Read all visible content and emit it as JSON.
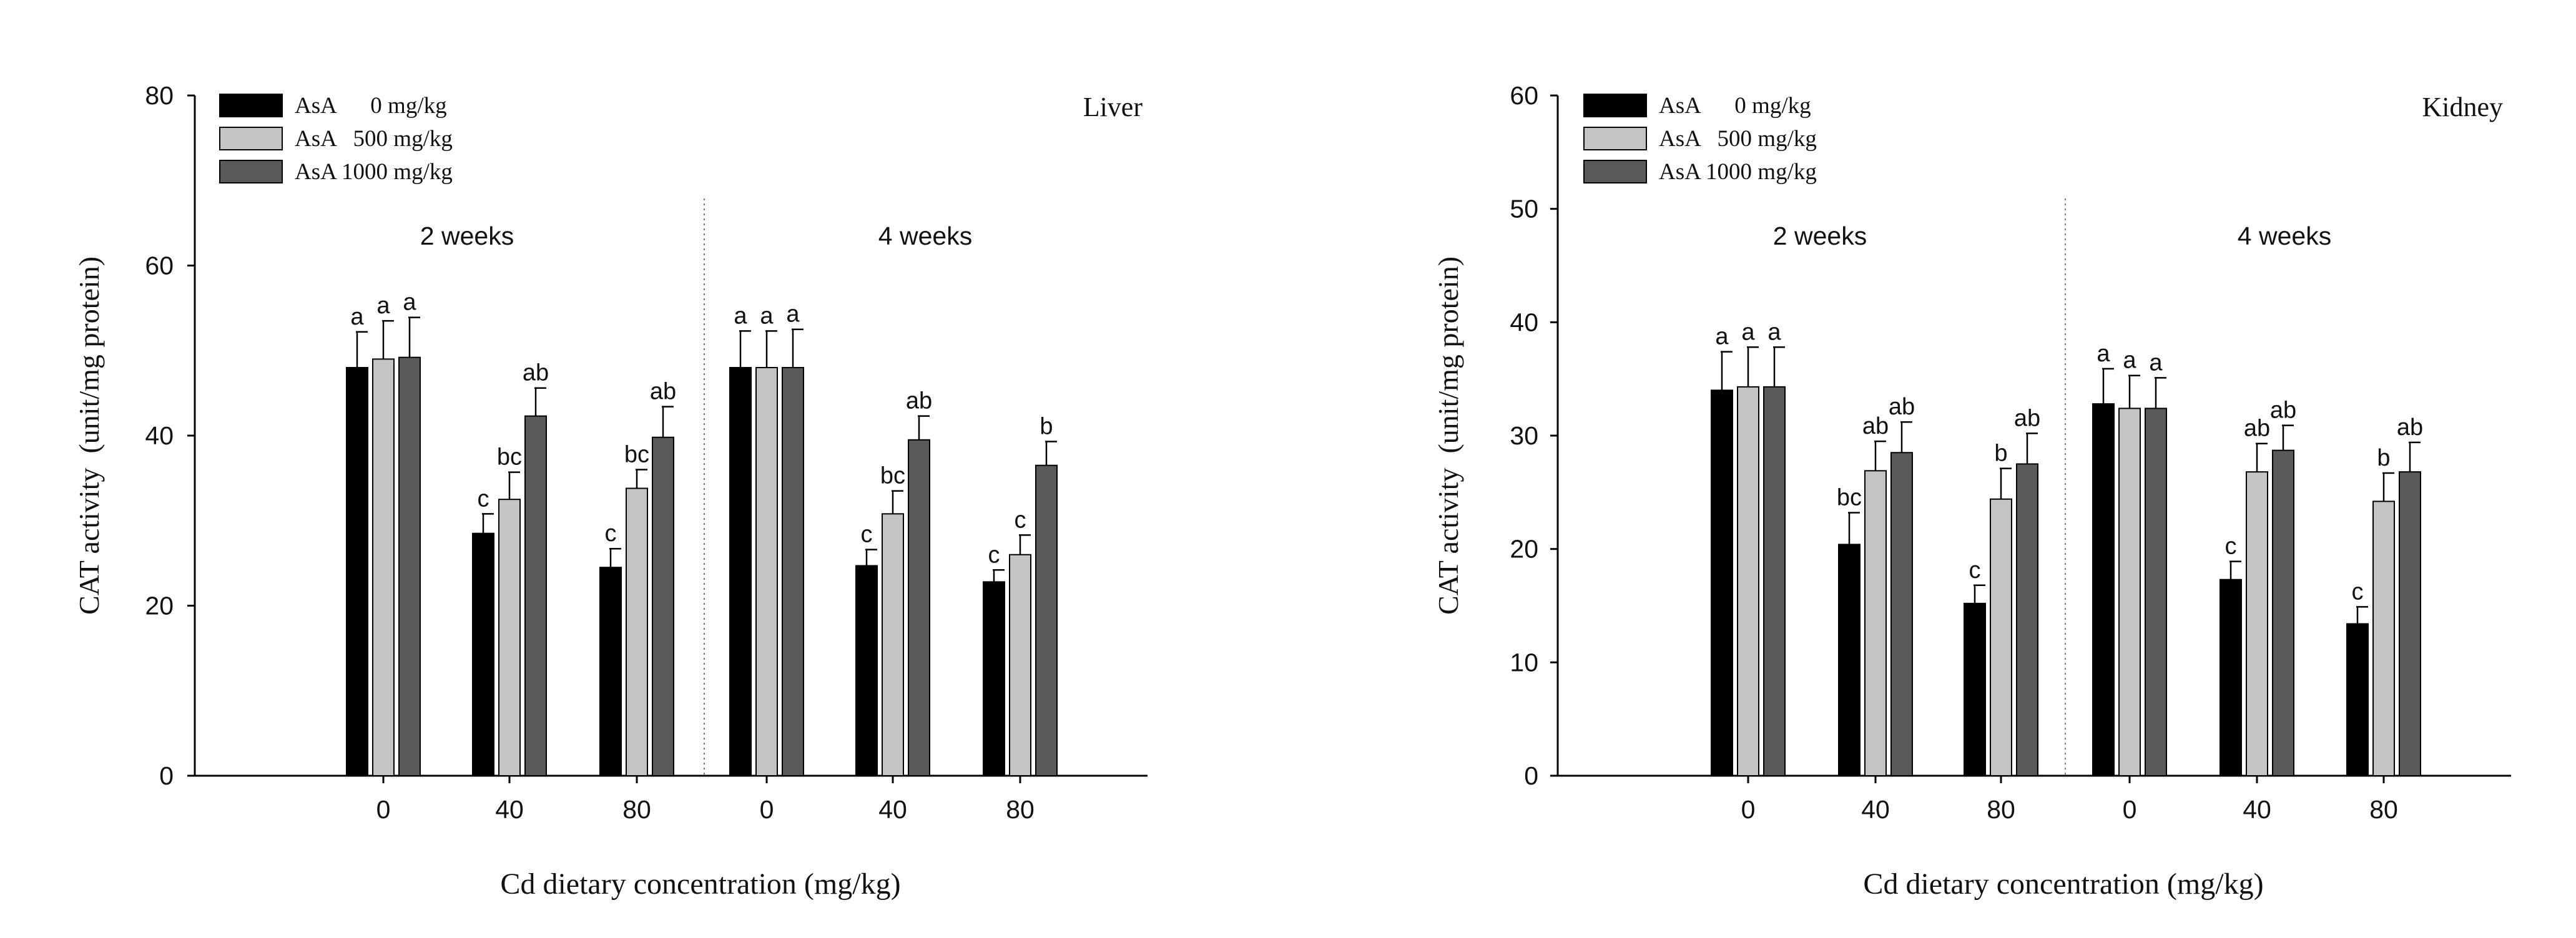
{
  "chart_data": [
    {
      "type": "bar",
      "panel_label": "Liver",
      "ylabel": "CAT activity  (unit/mg protein)",
      "xlabel": "Cd dietary concentration (mg/kg)",
      "ylim": [
        0,
        80
      ],
      "yticks": [
        "0",
        "20",
        "40",
        "60",
        "80"
      ],
      "periods": [
        {
          "label": "2 weeks",
          "categories": [
            "0",
            "40",
            "80"
          ],
          "series": [
            {
              "name": "AsA      0 mg/kg",
              "values": [
                48,
                28.5,
                24.5
              ],
              "errors": [
                4.2,
                2.3,
                2.2
              ],
              "letters": [
                "a",
                "c",
                "c"
              ]
            },
            {
              "name": "AsA   500 mg/kg",
              "values": [
                49,
                32.5,
                33.8
              ],
              "errors": [
                4.5,
                3.2,
                2.2
              ],
              "letters": [
                "a",
                "bc",
                "bc"
              ]
            },
            {
              "name": "AsA 1000 mg/kg",
              "values": [
                49.2,
                42.3,
                39.8
              ],
              "errors": [
                4.7,
                3.3,
                3.6
              ],
              "letters": [
                "a",
                "ab",
                "ab"
              ]
            }
          ]
        },
        {
          "label": "4 weeks",
          "categories": [
            "0",
            "40",
            "80"
          ],
          "series": [
            {
              "name": "AsA      0 mg/kg",
              "values": [
                48,
                24.7,
                22.8
              ],
              "errors": [
                4.3,
                1.9,
                1.4
              ],
              "letters": [
                "a",
                "c",
                "c"
              ]
            },
            {
              "name": "AsA   500 mg/kg",
              "values": [
                48,
                30.8,
                26
              ],
              "errors": [
                4.3,
                2.7,
                2.3
              ],
              "letters": [
                "a",
                "bc",
                "c"
              ]
            },
            {
              "name": "AsA 1000 mg/kg",
              "values": [
                48,
                39.5,
                36.5
              ],
              "errors": [
                4.5,
                2.8,
                2.8
              ],
              "letters": [
                "a",
                "ab",
                "b"
              ]
            }
          ]
        }
      ],
      "legend": [
        "AsA      0 mg/kg",
        "AsA   500 mg/kg",
        "AsA 1000 mg/kg"
      ],
      "legend_position": "top-left"
    },
    {
      "type": "bar",
      "panel_label": "Kidney",
      "ylabel": "CAT activity  (unit/mg protein)",
      "xlabel": "Cd dietary concentration (mg/kg)",
      "ylim": [
        0,
        60
      ],
      "yticks": [
        "0",
        "10",
        "20",
        "30",
        "40",
        "50",
        "60"
      ],
      "periods": [
        {
          "label": "2 weeks",
          "categories": [
            "0",
            "40",
            "80"
          ],
          "series": [
            {
              "name": "AsA      0 mg/kg",
              "values": [
                34,
                20.4,
                15.2
              ],
              "errors": [
                3.4,
                2.8,
                1.6
              ],
              "letters": [
                "a",
                "bc",
                "c"
              ]
            },
            {
              "name": "AsA   500 mg/kg",
              "values": [
                34.3,
                26.9,
                24.4
              ],
              "errors": [
                3.5,
                2.6,
                2.7
              ],
              "letters": [
                "a",
                "ab",
                "b"
              ]
            },
            {
              "name": "AsA 1000 mg/kg",
              "values": [
                34.3,
                28.5,
                27.5
              ],
              "errors": [
                3.5,
                2.7,
                2.7
              ],
              "letters": [
                "a",
                "ab",
                "ab"
              ]
            }
          ]
        },
        {
          "label": "4 weeks",
          "categories": [
            "0",
            "40",
            "80"
          ],
          "series": [
            {
              "name": "AsA      0 mg/kg",
              "values": [
                32.8,
                17.3,
                13.4
              ],
              "errors": [
                3.1,
                1.6,
                1.5
              ],
              "letters": [
                "a",
                "c",
                "c"
              ]
            },
            {
              "name": "AsA   500 mg/kg",
              "values": [
                32.4,
                26.8,
                24.2
              ],
              "errors": [
                2.9,
                2.5,
                2.5
              ],
              "letters": [
                "a",
                "ab",
                "b"
              ]
            },
            {
              "name": "AsA 1000 mg/kg",
              "values": [
                32.4,
                28.7,
                26.8
              ],
              "errors": [
                2.7,
                2.2,
                2.6
              ],
              "letters": [
                "a",
                "ab",
                "ab"
              ]
            }
          ]
        }
      ],
      "legend": [
        "AsA      0 mg/kg",
        "AsA   500 mg/kg",
        "AsA 1000 mg/kg"
      ],
      "legend_position": "top-left"
    }
  ],
  "colors": {
    "series": [
      "#000000",
      "#c4c4c4",
      "#5a5a5a"
    ],
    "axis": "#000000",
    "divider": "#808080"
  }
}
